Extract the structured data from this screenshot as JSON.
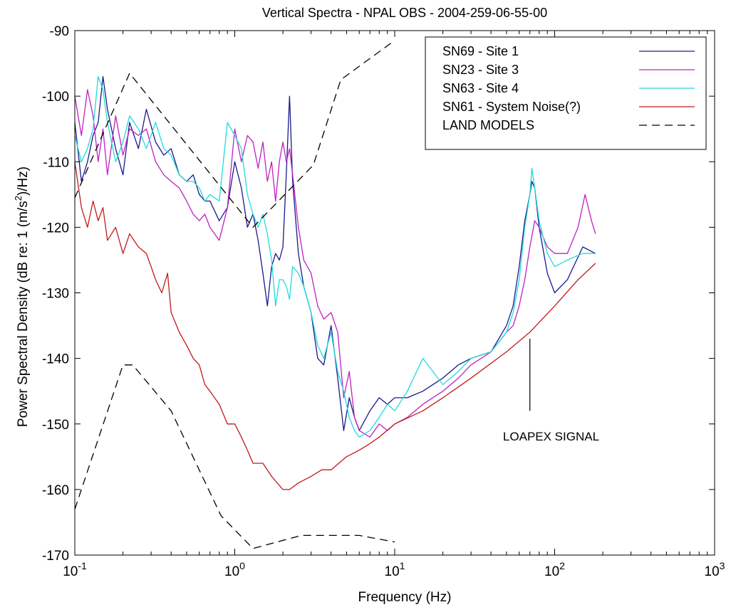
{
  "chart_data": {
    "type": "line",
    "title": "Vertical Spectra - NPAL OBS - 2004-259-06-55-00",
    "xlabel": "Frequency (Hz)",
    "ylabel": "Power Spectral Density (dB re: 1 (m/s^2)/Hz)",
    "ylabel_parts": {
      "pre": "Power Spectral Density (dB re: 1 (m/s",
      "sup": "2",
      "post": ")/Hz)"
    },
    "xscale": "log",
    "xlim": [
      0.1,
      1000
    ],
    "ylim": [
      -170,
      -90
    ],
    "xticks": [
      {
        "value": 0.1,
        "base": "10",
        "exp": "-1"
      },
      {
        "value": 1,
        "base": "10",
        "exp": "0"
      },
      {
        "value": 10,
        "base": "10",
        "exp": "1"
      },
      {
        "value": 100,
        "base": "10",
        "exp": "2"
      },
      {
        "value": 1000,
        "base": "10",
        "exp": "3"
      }
    ],
    "yticks": [
      -90,
      -100,
      -110,
      -120,
      -130,
      -140,
      -150,
      -160,
      -170
    ],
    "grid": false,
    "legend_position": "top-right",
    "series": [
      {
        "name": "SN69 - Site 1",
        "color": "#1a1a8c",
        "dash": "none",
        "points": [
          [
            0.1,
            -104
          ],
          [
            0.11,
            -113
          ],
          [
            0.12,
            -110
          ],
          [
            0.13,
            -106
          ],
          [
            0.14,
            -104
          ],
          [
            0.15,
            -97
          ],
          [
            0.16,
            -102
          ],
          [
            0.18,
            -108
          ],
          [
            0.2,
            -112
          ],
          [
            0.22,
            -104
          ],
          [
            0.25,
            -108
          ],
          [
            0.28,
            -102
          ],
          [
            0.32,
            -107
          ],
          [
            0.36,
            -109
          ],
          [
            0.4,
            -108
          ],
          [
            0.45,
            -112
          ],
          [
            0.5,
            -113
          ],
          [
            0.55,
            -112
          ],
          [
            0.6,
            -115
          ],
          [
            0.65,
            -116
          ],
          [
            0.7,
            -116
          ],
          [
            0.8,
            -119
          ],
          [
            0.9,
            -117
          ],
          [
            1.0,
            -110
          ],
          [
            1.1,
            -114
          ],
          [
            1.2,
            -120
          ],
          [
            1.3,
            -118
          ],
          [
            1.4,
            -122
          ],
          [
            1.5,
            -127
          ],
          [
            1.6,
            -132
          ],
          [
            1.7,
            -126
          ],
          [
            1.8,
            -124
          ],
          [
            1.9,
            -125
          ],
          [
            2.0,
            -123
          ],
          [
            2.1,
            -112
          ],
          [
            2.2,
            -100
          ],
          [
            2.3,
            -113
          ],
          [
            2.5,
            -124
          ],
          [
            2.7,
            -129
          ],
          [
            3.0,
            -133
          ],
          [
            3.3,
            -140
          ],
          [
            3.6,
            -141
          ],
          [
            4.0,
            -135
          ],
          [
            4.4,
            -143
          ],
          [
            4.8,
            -151
          ],
          [
            5.2,
            -146
          ],
          [
            5.6,
            -149
          ],
          [
            6.0,
            -151
          ],
          [
            7.0,
            -148
          ],
          [
            8.0,
            -146
          ],
          [
            9.0,
            -147
          ],
          [
            10,
            -146
          ],
          [
            12,
            -146
          ],
          [
            15,
            -145
          ],
          [
            20,
            -143
          ],
          [
            25,
            -141
          ],
          [
            30,
            -140
          ],
          [
            40,
            -139
          ],
          [
            50,
            -135
          ],
          [
            55,
            -132
          ],
          [
            60,
            -126
          ],
          [
            65,
            -119
          ],
          [
            70,
            -115
          ],
          [
            72,
            -113
          ],
          [
            75,
            -114
          ],
          [
            80,
            -120
          ],
          [
            90,
            -127
          ],
          [
            100,
            -130
          ],
          [
            120,
            -128
          ],
          [
            150,
            -123
          ],
          [
            180,
            -124
          ]
        ]
      },
      {
        "name": "SN23 - Site 3",
        "color": "#c020c0",
        "dash": "none",
        "points": [
          [
            0.1,
            -100
          ],
          [
            0.11,
            -106
          ],
          [
            0.12,
            -99
          ],
          [
            0.13,
            -103
          ],
          [
            0.14,
            -110
          ],
          [
            0.15,
            -105
          ],
          [
            0.16,
            -112
          ],
          [
            0.18,
            -103
          ],
          [
            0.2,
            -109
          ],
          [
            0.22,
            -105
          ],
          [
            0.25,
            -106
          ],
          [
            0.28,
            -105
          ],
          [
            0.32,
            -110
          ],
          [
            0.36,
            -112
          ],
          [
            0.4,
            -113
          ],
          [
            0.45,
            -114
          ],
          [
            0.5,
            -116
          ],
          [
            0.55,
            -118
          ],
          [
            0.6,
            -119
          ],
          [
            0.65,
            -118
          ],
          [
            0.7,
            -120
          ],
          [
            0.8,
            -122
          ],
          [
            0.9,
            -117
          ],
          [
            1.0,
            -105
          ],
          [
            1.1,
            -110
          ],
          [
            1.2,
            -106
          ],
          [
            1.3,
            -107
          ],
          [
            1.4,
            -111
          ],
          [
            1.5,
            -107
          ],
          [
            1.6,
            -113
          ],
          [
            1.7,
            -110
          ],
          [
            1.8,
            -116
          ],
          [
            1.9,
            -110
          ],
          [
            2.0,
            -107
          ],
          [
            2.1,
            -110
          ],
          [
            2.2,
            -108
          ],
          [
            2.3,
            -112
          ],
          [
            2.5,
            -120
          ],
          [
            2.7,
            -125
          ],
          [
            3.0,
            -127
          ],
          [
            3.3,
            -132
          ],
          [
            3.6,
            -134
          ],
          [
            4.0,
            -133
          ],
          [
            4.4,
            -136
          ],
          [
            4.8,
            -146
          ],
          [
            5.2,
            -142
          ],
          [
            5.6,
            -149
          ],
          [
            6.0,
            -151
          ],
          [
            7.0,
            -152
          ],
          [
            8.0,
            -150
          ],
          [
            9.0,
            -151
          ],
          [
            10,
            -150
          ],
          [
            12,
            -149
          ],
          [
            15,
            -147
          ],
          [
            20,
            -145
          ],
          [
            25,
            -143
          ],
          [
            30,
            -141
          ],
          [
            40,
            -139
          ],
          [
            50,
            -136
          ],
          [
            55,
            -135
          ],
          [
            60,
            -132
          ],
          [
            65,
            -128
          ],
          [
            70,
            -123
          ],
          [
            75,
            -119
          ],
          [
            80,
            -120
          ],
          [
            90,
            -123
          ],
          [
            100,
            -124
          ],
          [
            120,
            -124
          ],
          [
            140,
            -120
          ],
          [
            155,
            -115
          ],
          [
            170,
            -119
          ],
          [
            180,
            -121
          ]
        ]
      },
      {
        "name": "SN63 - Site 4",
        "color": "#22dada",
        "dash": "none",
        "points": [
          [
            0.1,
            -106
          ],
          [
            0.11,
            -110
          ],
          [
            0.12,
            -108
          ],
          [
            0.13,
            -105
          ],
          [
            0.14,
            -97
          ],
          [
            0.15,
            -99
          ],
          [
            0.16,
            -104
          ],
          [
            0.18,
            -110
          ],
          [
            0.2,
            -107
          ],
          [
            0.22,
            -103
          ],
          [
            0.25,
            -105
          ],
          [
            0.28,
            -108
          ],
          [
            0.32,
            -104
          ],
          [
            0.36,
            -108
          ],
          [
            0.4,
            -109
          ],
          [
            0.45,
            -112
          ],
          [
            0.5,
            -113
          ],
          [
            0.55,
            -113
          ],
          [
            0.6,
            -114
          ],
          [
            0.65,
            -116
          ],
          [
            0.7,
            -115
          ],
          [
            0.8,
            -116
          ],
          [
            0.9,
            -104
          ],
          [
            1.0,
            -106
          ],
          [
            1.1,
            -108
          ],
          [
            1.2,
            -115
          ],
          [
            1.3,
            -118
          ],
          [
            1.4,
            -120
          ],
          [
            1.5,
            -118
          ],
          [
            1.6,
            -121
          ],
          [
            1.7,
            -125
          ],
          [
            1.8,
            -132
          ],
          [
            1.9,
            -128
          ],
          [
            2.0,
            -128
          ],
          [
            2.1,
            -129
          ],
          [
            2.2,
            -131
          ],
          [
            2.3,
            -126
          ],
          [
            2.5,
            -127
          ],
          [
            2.7,
            -129
          ],
          [
            3.0,
            -133
          ],
          [
            3.3,
            -138
          ],
          [
            3.6,
            -140
          ],
          [
            4.0,
            -136
          ],
          [
            4.4,
            -142
          ],
          [
            4.8,
            -145
          ],
          [
            5.2,
            -149
          ],
          [
            5.6,
            -151
          ],
          [
            6.0,
            -152
          ],
          [
            7.0,
            -151
          ],
          [
            8.0,
            -149
          ],
          [
            9.0,
            -147
          ],
          [
            10,
            -148
          ],
          [
            12,
            -145
          ],
          [
            15,
            -140
          ],
          [
            20,
            -144
          ],
          [
            25,
            -142
          ],
          [
            30,
            -140
          ],
          [
            40,
            -139
          ],
          [
            50,
            -136
          ],
          [
            55,
            -133
          ],
          [
            60,
            -128
          ],
          [
            65,
            -120
          ],
          [
            70,
            -115
          ],
          [
            72,
            -111
          ],
          [
            75,
            -114
          ],
          [
            80,
            -119
          ],
          [
            90,
            -124
          ],
          [
            100,
            -126
          ],
          [
            120,
            -125
          ],
          [
            150,
            -124
          ],
          [
            180,
            -124
          ]
        ]
      },
      {
        "name": "SN61 - System Noise(?)",
        "color": "#c01a1a",
        "dash": "none",
        "points": [
          [
            0.1,
            -110
          ],
          [
            0.11,
            -117
          ],
          [
            0.12,
            -120
          ],
          [
            0.13,
            -116
          ],
          [
            0.14,
            -119
          ],
          [
            0.15,
            -117
          ],
          [
            0.16,
            -122
          ],
          [
            0.18,
            -120
          ],
          [
            0.2,
            -124
          ],
          [
            0.22,
            -121
          ],
          [
            0.25,
            -123
          ],
          [
            0.28,
            -124
          ],
          [
            0.3,
            -126
          ],
          [
            0.32,
            -128
          ],
          [
            0.35,
            -130
          ],
          [
            0.38,
            -127
          ],
          [
            0.4,
            -133
          ],
          [
            0.45,
            -136
          ],
          [
            0.5,
            -138
          ],
          [
            0.55,
            -140
          ],
          [
            0.6,
            -141
          ],
          [
            0.65,
            -144
          ],
          [
            0.7,
            -145
          ],
          [
            0.8,
            -147
          ],
          [
            0.9,
            -150
          ],
          [
            1.0,
            -150
          ],
          [
            1.1,
            -152
          ],
          [
            1.2,
            -154
          ],
          [
            1.3,
            -156
          ],
          [
            1.5,
            -156
          ],
          [
            1.7,
            -158
          ],
          [
            2.0,
            -160
          ],
          [
            2.2,
            -160
          ],
          [
            2.5,
            -159
          ],
          [
            3.0,
            -158
          ],
          [
            3.5,
            -157
          ],
          [
            4.0,
            -157
          ],
          [
            5.0,
            -155
          ],
          [
            6.0,
            -154
          ],
          [
            7.0,
            -153
          ],
          [
            8.0,
            -152
          ],
          [
            10,
            -150
          ],
          [
            15,
            -148
          ],
          [
            20,
            -146
          ],
          [
            30,
            -143
          ],
          [
            50,
            -139
          ],
          [
            70,
            -136
          ],
          [
            100,
            -132
          ],
          [
            140,
            -128
          ],
          [
            180,
            -125.5
          ]
        ]
      },
      {
        "name": "LAND MODELS",
        "color": "#000000",
        "dash": "11,7",
        "points": [
          [
            0.1,
            -115.5
          ],
          [
            0.22,
            -96.5
          ],
          [
            1.3,
            -120
          ],
          [
            3.1,
            -110.5
          ],
          [
            4.6,
            -97.5
          ],
          [
            10,
            -91.5
          ]
        ]
      },
      {
        "name": "",
        "color": "#000000",
        "dash": "11,7",
        "legend": false,
        "points": [
          [
            0.1,
            -163
          ],
          [
            0.2,
            -141
          ],
          [
            0.23,
            -141
          ],
          [
            0.4,
            -148
          ],
          [
            0.82,
            -164
          ],
          [
            1.3,
            -169
          ],
          [
            2.6,
            -167
          ],
          [
            6.0,
            -167
          ],
          [
            10,
            -168
          ]
        ]
      }
    ],
    "annotations": [
      {
        "text": "LOAPEX SIGNAL",
        "x": 95,
        "y": -152.5,
        "marker": {
          "x": 70,
          "y_from": -137,
          "y_to": -148
        }
      }
    ]
  }
}
